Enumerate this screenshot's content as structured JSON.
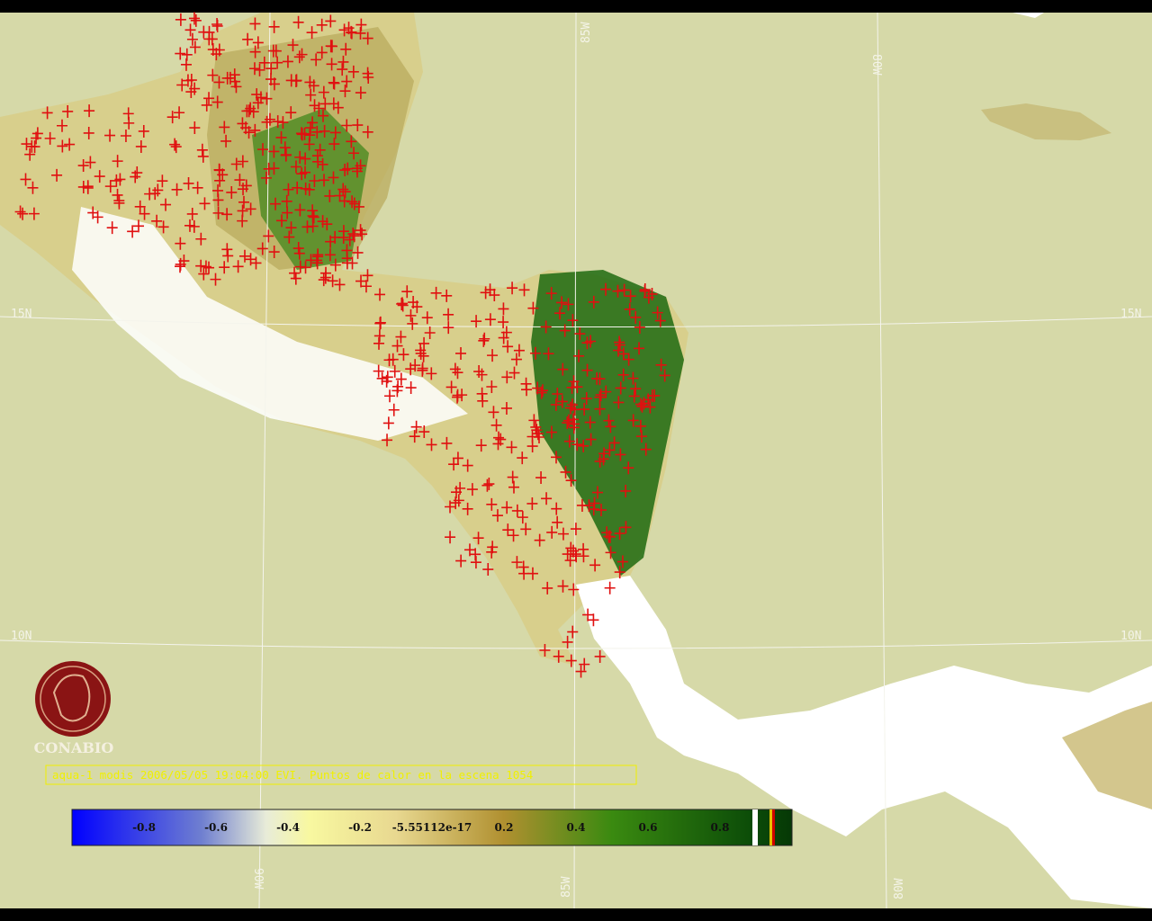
{
  "map": {
    "grid_labels": {
      "lon_top_85": "85W",
      "lon_top_80": "80W",
      "lon_bottom_90": "90W",
      "lon_bottom_85": "85W",
      "lon_bottom_80": "80W",
      "lat_left_15": "15N",
      "lat_right_15": "15N",
      "lat_left_10": "10N",
      "lat_right_10": "10N"
    },
    "logo": "CONABIO",
    "caption": "aqua-1 modis 2006/05/05 19:04:00 EVI. Puntos de calor en la escena 1054",
    "colorbar_labels": [
      "-0.8",
      "-0.6",
      "-0.4",
      "-0.2",
      "-5.55112e-17",
      "0.2",
      "0.4",
      "0.6",
      "0.8"
    ]
  }
}
